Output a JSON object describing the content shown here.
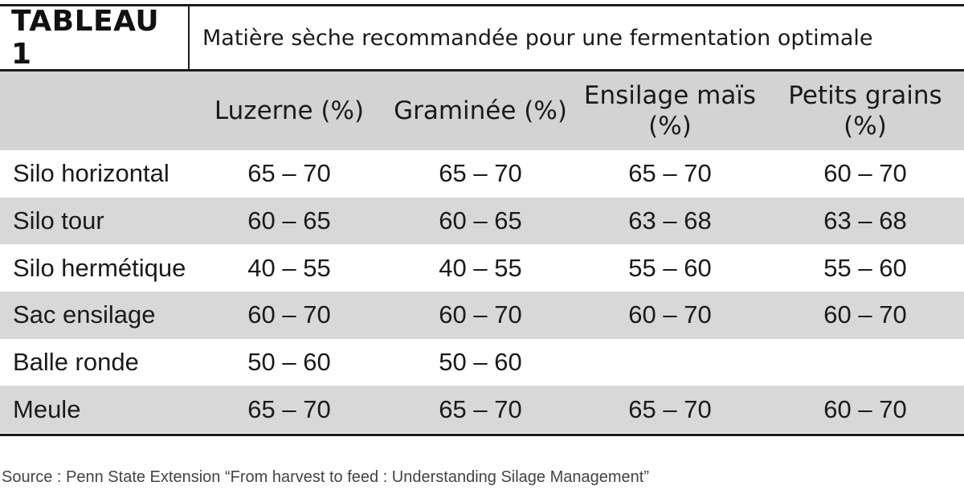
{
  "title": {
    "label": "TABLEAU 1",
    "text": "Matière sèche recommandée pour une fermentation optimale"
  },
  "table": {
    "columns": [
      "",
      "Luzerne (%)",
      "Graminée (%)",
      "Ensilage maïs (%)",
      "Petits grains (%)"
    ],
    "rows": [
      [
        "Silo horizontal",
        "65 – 70",
        "65 – 70",
        "65 – 70",
        "60 – 70"
      ],
      [
        "Silo tour",
        "60 – 65",
        "60 – 65",
        "63 – 68",
        "63 – 68"
      ],
      [
        "Silo hermétique",
        "40 – 55",
        "40 – 55",
        "55 – 60",
        "55 – 60"
      ],
      [
        "Sac ensilage",
        "60 – 70",
        "60 – 70",
        "60 – 70",
        "60 – 70"
      ],
      [
        "Balle ronde",
        "50 – 60",
        "50 – 60",
        "",
        ""
      ],
      [
        "Meule",
        "65 – 70",
        "65 – 70",
        "65 – 70",
        "60 – 70"
      ]
    ]
  },
  "source": "Source : Penn State Extension “From harvest to feed : Understanding Silage Management”",
  "colors": {
    "header_bg": "#d3d3d3",
    "stripe_bg": "#d8d8d8",
    "rule": "#1a1a1a"
  }
}
